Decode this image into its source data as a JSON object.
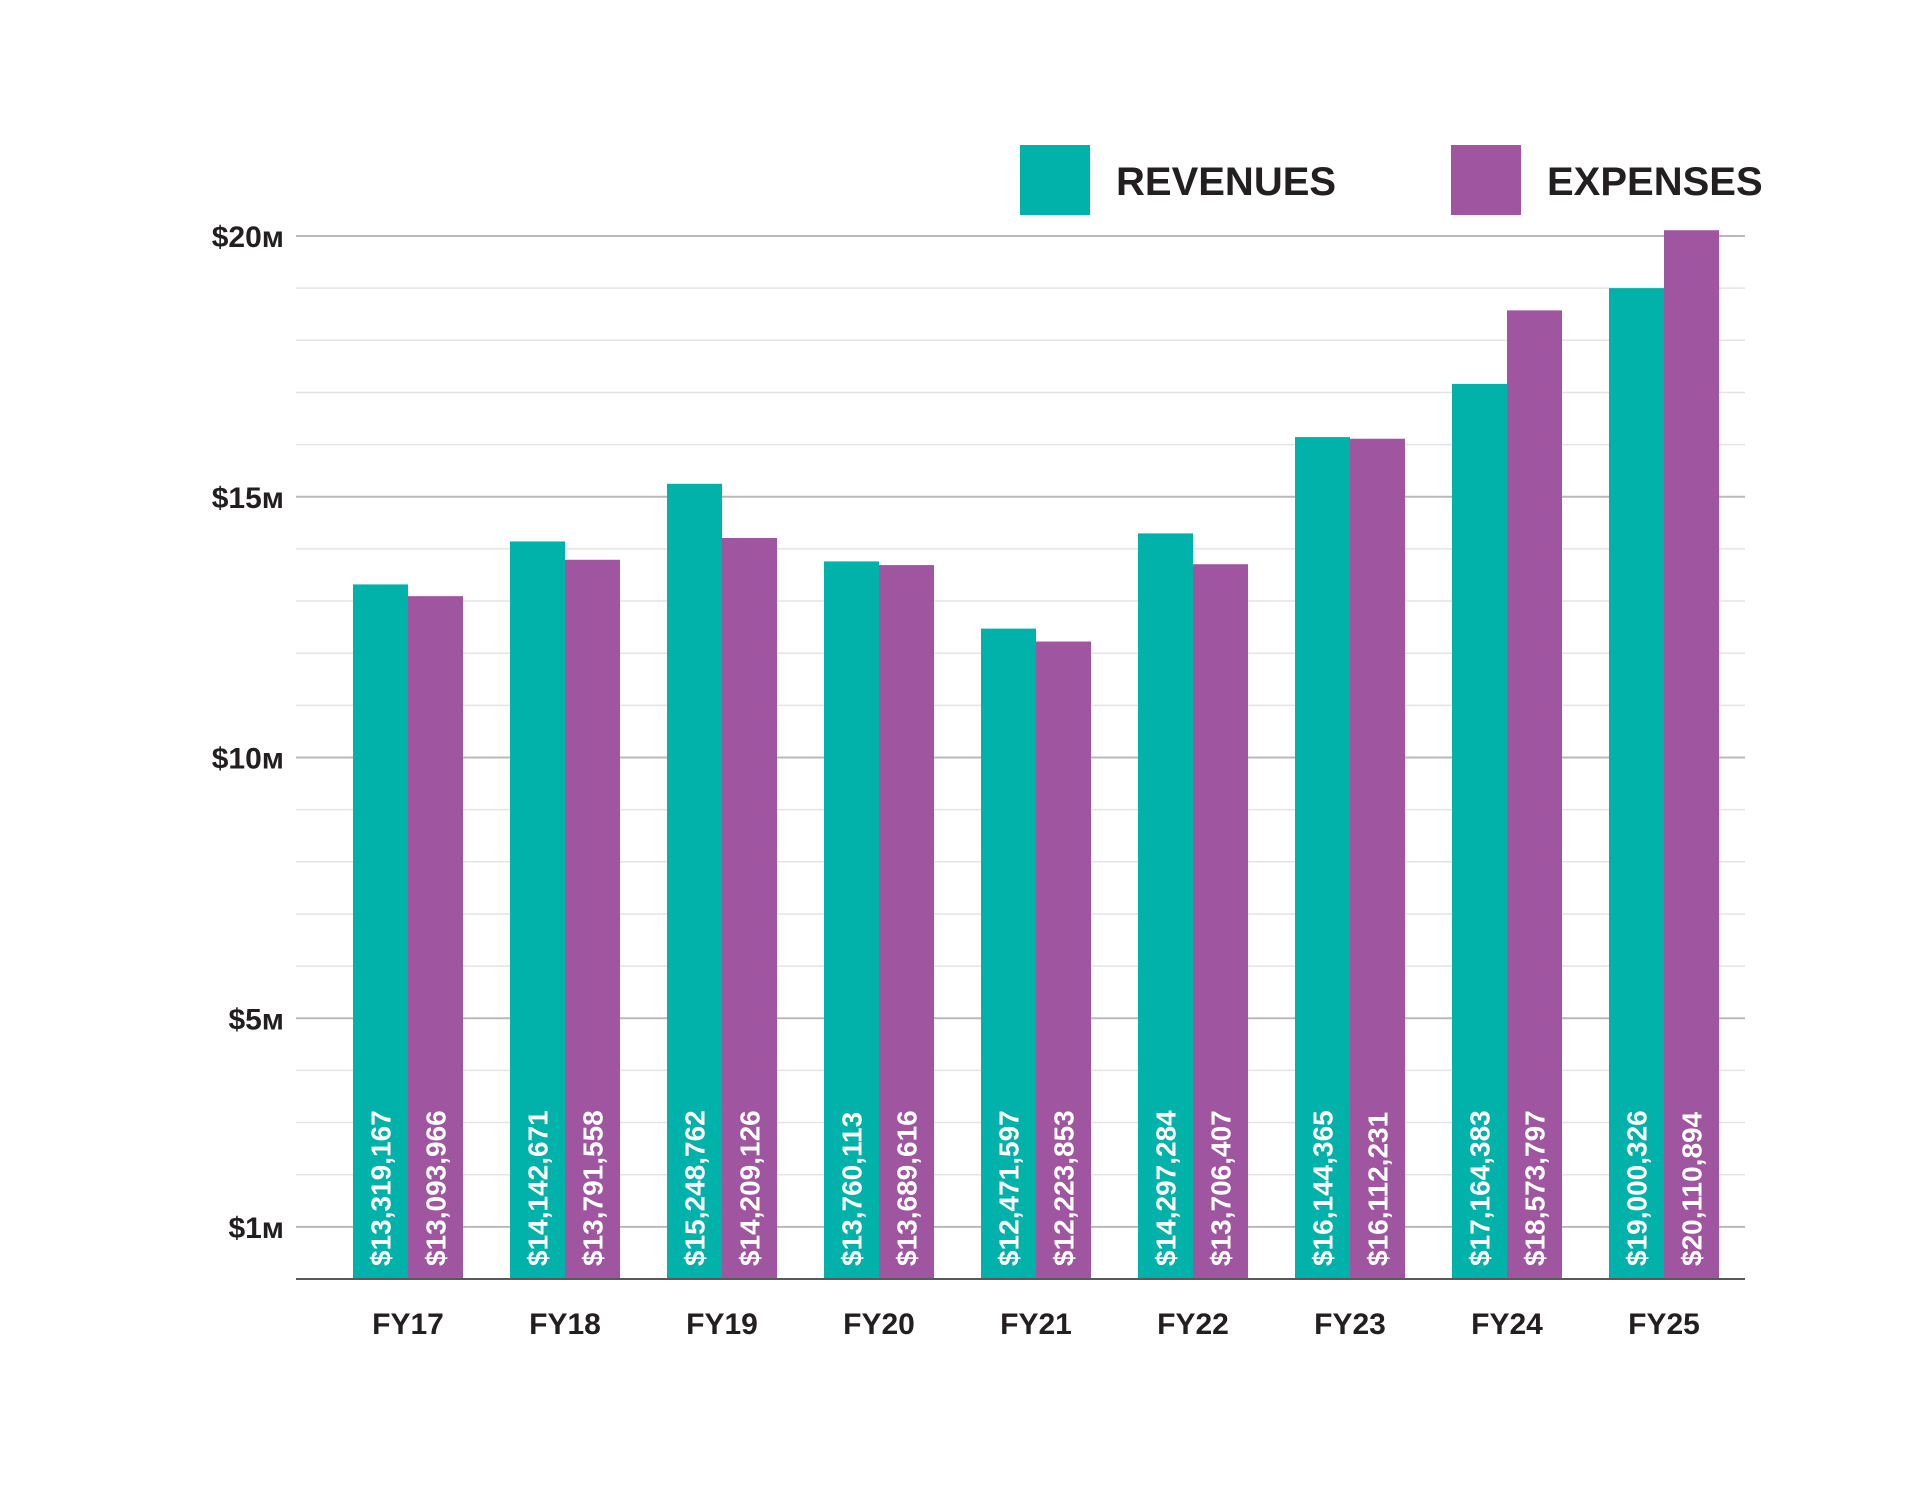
{
  "chart_data": {
    "type": "bar",
    "title": "",
    "xlabel": "",
    "ylabel": "",
    "categories": [
      "FY17",
      "FY18",
      "FY19",
      "FY20",
      "FY21",
      "FY22",
      "FY23",
      "FY24",
      "FY25"
    ],
    "series": [
      {
        "name": "REVENUES",
        "color": "#00b2a9",
        "values": [
          13319167,
          14142671,
          15248762,
          13760113,
          12471597,
          14297284,
          16144365,
          17164383,
          19000326
        ],
        "labels": [
          "$13,319,167",
          "$14,142,671",
          "$15,248,762",
          "$13,760,113",
          "$12,471,597",
          "$14,297,284",
          "$16,144,365",
          "$17,164,383",
          "$19,000,326"
        ]
      },
      {
        "name": "EXPENSES",
        "color": "#a055a0",
        "values": [
          13093966,
          13791558,
          14209126,
          13689616,
          12223853,
          13706407,
          16112231,
          18573797,
          20110894
        ],
        "labels": [
          "$13,093,966",
          "$13,791,558",
          "$14,209,126",
          "$13,689,616",
          "$12,223,853",
          "$13,706,407",
          "$16,112,231",
          "$18,573,797",
          "$20,110,894"
        ]
      }
    ],
    "y_ticks": [
      {
        "value": 1000000,
        "label": "$1м"
      },
      {
        "value": 5000000,
        "label": "$5м"
      },
      {
        "value": 10000000,
        "label": "$10м"
      },
      {
        "value": 15000000,
        "label": "$15м"
      },
      {
        "value": 20000000,
        "label": "$20м"
      }
    ],
    "ylim": [
      0,
      20000000
    ],
    "minor_grid_step": 1000000,
    "grid": true,
    "legend": {
      "position": "top-right"
    }
  }
}
